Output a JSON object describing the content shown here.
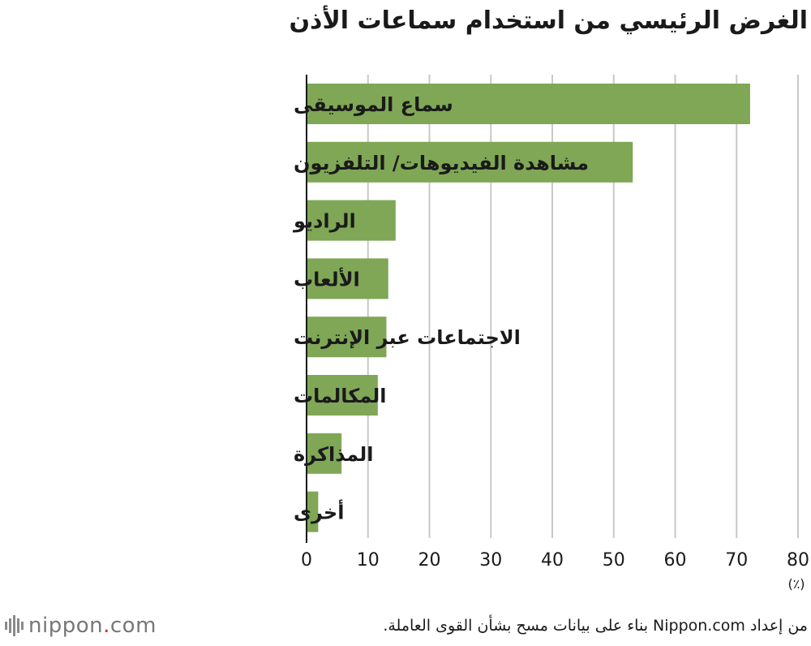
{
  "colors": {
    "bar": "#7fa756",
    "grid": "#c8c8c8",
    "axis": "#1a1a1a",
    "logo_gray": "#777777",
    "logo_dot": "#c0392b"
  },
  "footer": {
    "logo_name": "nippon",
    "logo_dot": ".",
    "logo_tld": "com",
    "source": "من إعداد Nippon.com بناء على بيانات مسح بشأن القوى العاملة."
  },
  "chart_data": {
    "type": "bar",
    "orientation": "horizontal",
    "title": "الغرض الرئيسي من استخدام سماعات الأذن",
    "categories": [
      "سماع الموسيقى",
      "مشاهدة الفيديوهات/ التلفزيون",
      "الراديو",
      "الألعاب",
      "الاجتماعات عبر الإنترنت",
      "المكالمات",
      "المذاكرة",
      "أخرى"
    ],
    "values": [
      72.2,
      53.1,
      14.5,
      13.3,
      13.0,
      11.6,
      5.7,
      1.9
    ],
    "xlim": [
      0,
      80
    ],
    "xticks": [
      "0",
      "10",
      "20",
      "30",
      "40",
      "50",
      "60",
      "70",
      "80"
    ],
    "unit": "(٪)",
    "grid": true,
    "legend": "none"
  }
}
